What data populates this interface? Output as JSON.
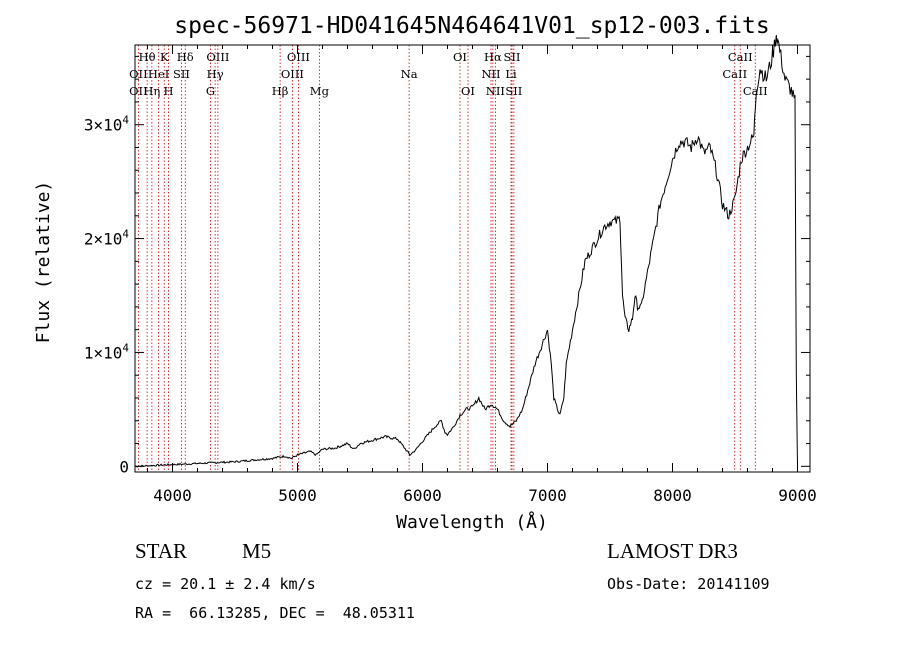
{
  "chart_data": {
    "type": "line",
    "title": "spec-56971-HD041645N464641V01_sp12-003.fits",
    "xlabel": "Wavelength (Å)",
    "ylabel": "Flux (relative)",
    "xlim": [
      3700,
      9100
    ],
    "ylim": [
      -500,
      37000
    ],
    "xticks": [
      {
        "value": 4000,
        "label": "4000"
      },
      {
        "value": 5000,
        "label": "5000"
      },
      {
        "value": 6000,
        "label": "6000"
      },
      {
        "value": 7000,
        "label": "7000"
      },
      {
        "value": 8000,
        "label": "8000"
      },
      {
        "value": 9000,
        "label": "9000"
      }
    ],
    "yticks": [
      {
        "value": 0,
        "mantissa": "0",
        "exponent": ""
      },
      {
        "value": 10000,
        "mantissa": "1×10",
        "exponent": "4"
      },
      {
        "value": 20000,
        "mantissa": "2×10",
        "exponent": "4"
      },
      {
        "value": 30000,
        "mantissa": "3×10",
        "exponent": "4"
      }
    ],
    "series": [
      {
        "name": "flux",
        "x": [
          3700,
          3900,
          4100,
          4300,
          4500,
          4700,
          4800,
          4900,
          4950,
          5000,
          5100,
          5150,
          5200,
          5300,
          5400,
          5450,
          5500,
          5600,
          5700,
          5800,
          5900,
          5950,
          6000,
          6100,
          6150,
          6180,
          6200,
          6250,
          6300,
          6350,
          6400,
          6450,
          6500,
          6550,
          6600,
          6650,
          6700,
          6750,
          6800,
          6850,
          6900,
          6950,
          7000,
          7030,
          7050,
          7080,
          7100,
          7130,
          7150,
          7200,
          7250,
          7300,
          7350,
          7400,
          7450,
          7500,
          7550,
          7580,
          7600,
          7620,
          7650,
          7680,
          7700,
          7720,
          7750,
          7800,
          7850,
          7900,
          7950,
          8000,
          8050,
          8100,
          8150,
          8200,
          8250,
          8300,
          8350,
          8400,
          8450,
          8500,
          8550,
          8600,
          8650,
          8670,
          8700,
          8750,
          8800,
          8830,
          8850,
          8900,
          8950,
          8980,
          8990,
          9000
        ],
        "values": [
          0,
          100,
          200,
          300,
          400,
          600,
          700,
          900,
          700,
          1000,
          1300,
          1000,
          1500,
          1600,
          2000,
          1500,
          2000,
          2300,
          2600,
          2400,
          1000,
          1500,
          2200,
          3500,
          4000,
          3000,
          2800,
          3500,
          4500,
          5000,
          5200,
          6000,
          5000,
          5500,
          5000,
          4000,
          3500,
          4000,
          5000,
          7000,
          9000,
          10500,
          12000,
          9000,
          6000,
          5000,
          4500,
          6000,
          9000,
          12000,
          15000,
          18000,
          19000,
          20000,
          21000,
          21500,
          21500,
          21800,
          15000,
          13000,
          12000,
          13000,
          15000,
          14000,
          14000,
          17000,
          20000,
          23000,
          25000,
          27000,
          28500,
          28500,
          28000,
          29000,
          27500,
          28000,
          26000,
          23000,
          22000,
          23500,
          27000,
          28000,
          29000,
          33000,
          35000,
          34000,
          36000,
          38000,
          37000,
          34000,
          33000,
          32000,
          8000,
          0
        ]
      }
    ],
    "spectral_lines": [
      {
        "name": "Hθ",
        "wavelength": 3797,
        "row": 0
      },
      {
        "name": "K",
        "wavelength": 3934,
        "row": 0
      },
      {
        "name": "Hδ",
        "wavelength": 4102,
        "row": 0
      },
      {
        "name": "OIII",
        "wavelength": 4363,
        "row": 0
      },
      {
        "name": "OIII",
        "wavelength": 5007,
        "row": 0
      },
      {
        "name": "OI",
        "wavelength": 6300,
        "row": 0
      },
      {
        "name": "Hα",
        "wavelength": 6563,
        "row": 0
      },
      {
        "name": "SII",
        "wavelength": 6716,
        "row": 0
      },
      {
        "name": "CaII",
        "wavelength": 8542,
        "row": 0
      },
      {
        "name": "OII",
        "wavelength": 3727,
        "row": 1
      },
      {
        "name": "HeI",
        "wavelength": 3889,
        "row": 1
      },
      {
        "name": "SII",
        "wavelength": 4072,
        "row": 1
      },
      {
        "name": "Hγ",
        "wavelength": 4341,
        "row": 1
      },
      {
        "name": "OIII",
        "wavelength": 4959,
        "row": 1
      },
      {
        "name": "Na",
        "wavelength": 5893,
        "row": 1
      },
      {
        "name": "NII",
        "wavelength": 6548,
        "row": 1
      },
      {
        "name": "Li",
        "wavelength": 6708,
        "row": 1
      },
      {
        "name": "CaII",
        "wavelength": 8498,
        "row": 1
      },
      {
        "name": "OII",
        "wavelength": 3727,
        "row": 2
      },
      {
        "name": "Hη",
        "wavelength": 3835,
        "row": 2
      },
      {
        "name": "H",
        "wavelength": 3968,
        "row": 2
      },
      {
        "name": "G",
        "wavelength": 4304,
        "row": 2
      },
      {
        "name": "Hβ",
        "wavelength": 4861,
        "row": 2
      },
      {
        "name": "Mg",
        "wavelength": 5175,
        "row": 2
      },
      {
        "name": "OI",
        "wavelength": 6364,
        "row": 2
      },
      {
        "name": "NII",
        "wavelength": 6583,
        "row": 2
      },
      {
        "name": "SII",
        "wavelength": 6731,
        "row": 2
      },
      {
        "name": "CaII",
        "wavelength": 8662,
        "row": 2
      }
    ],
    "line_color": "#000000",
    "marker_color": "#cc0000"
  },
  "info": {
    "object_class": "STAR",
    "subclass": "M5",
    "survey": "LAMOST DR3",
    "redshift": "cz = 20.1 ± 2.4 km/s",
    "obs_date": "Obs-Date: 20141109",
    "coords": "RA =  66.13285, DEC =  48.05311"
  }
}
